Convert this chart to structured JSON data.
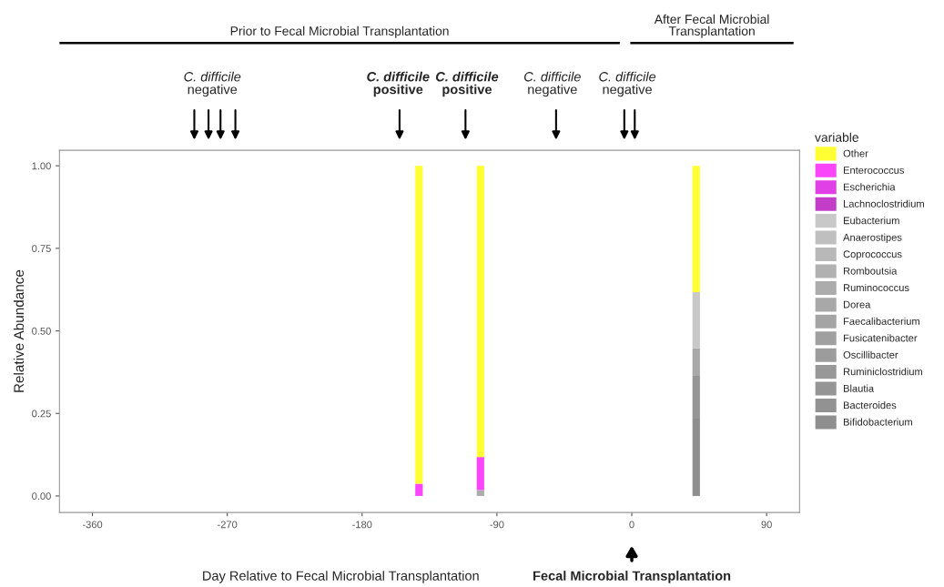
{
  "chart_data": {
    "type": "bar",
    "stacked": true,
    "xlabel": "Day Relative to Fecal Microbial Transplantation",
    "ylabel": "Relative Abundance",
    "legend_title": "variable",
    "legend": "right",
    "x": [
      -142,
      -101,
      43
    ],
    "series": [
      {
        "name": "Bifidobacterium",
        "color": "#8e8e8e",
        "values": [
          0,
          0,
          0.234
        ]
      },
      {
        "name": "Bacteroides",
        "color": "#929292",
        "values": [
          0,
          0,
          0
        ]
      },
      {
        "name": "Blautia",
        "color": "#959595",
        "values": [
          0,
          0,
          0.13
        ]
      },
      {
        "name": "Ruminiclostridium",
        "color": "#989898",
        "values": [
          0,
          0,
          0
        ]
      },
      {
        "name": "Oscillibacter",
        "color": "#9c9c9c",
        "values": [
          0,
          0,
          0
        ]
      },
      {
        "name": "Fusicatenibacter",
        "color": "#a0a0a0",
        "values": [
          0,
          0,
          0
        ]
      },
      {
        "name": "Faecalibacterium",
        "color": "#a4a4a4",
        "values": [
          0,
          0,
          0
        ]
      },
      {
        "name": "Dorea",
        "color": "#a8a8a8",
        "values": [
          0,
          0,
          0.083
        ]
      },
      {
        "name": "Ruminococcus",
        "color": "#acacac",
        "values": [
          0,
          0.018,
          0
        ]
      },
      {
        "name": "Romboutsia",
        "color": "#b1b1b1",
        "values": [
          0,
          0,
          0
        ]
      },
      {
        "name": "Coprococcus",
        "color": "#b8b8b8",
        "values": [
          0,
          0,
          0
        ]
      },
      {
        "name": "Anaerostipes",
        "color": "#bfbfbf",
        "values": [
          0,
          0,
          0
        ]
      },
      {
        "name": "Eubacterium",
        "color": "#c8c8c8",
        "values": [
          0,
          0,
          0.17
        ]
      },
      {
        "name": "Lachnoclostridium",
        "color": "#c23ec8",
        "values": [
          0,
          0,
          0
        ]
      },
      {
        "name": "Escherichia",
        "color": "#e040e6",
        "values": [
          0,
          0,
          0
        ]
      },
      {
        "name": "Enterococcus",
        "color": "#f846f8",
        "values": [
          0.037,
          0.1,
          0
        ]
      },
      {
        "name": "Other",
        "color": "#ffff33",
        "values": [
          0.963,
          0.882,
          0.383
        ]
      }
    ],
    "xlim": [
      -382,
      112
    ],
    "xticks": [
      -360,
      -270,
      -180,
      -90,
      0,
      90
    ],
    "ylim": [
      -0.05,
      1.047
    ],
    "yticks": [
      {
        "value": 0,
        "label": "0.00"
      },
      {
        "value": 0.25,
        "label": "0.25"
      },
      {
        "value": 0.5,
        "label": "0.50"
      },
      {
        "value": 0.75,
        "label": "0.75"
      },
      {
        "value": 1,
        "label": "1.00"
      }
    ],
    "annotations": [
      "Prior to Fecal Microbial Transplantation",
      "After Fecal Microbial\nTransplantation",
      "C. difficile\nnegative",
      "C. difficile\npositive",
      "C. difficile\npositive",
      "C. difficile\nnegative",
      "C. difficile\nnegative",
      "Fecal Microbial Transplantation"
    ]
  }
}
